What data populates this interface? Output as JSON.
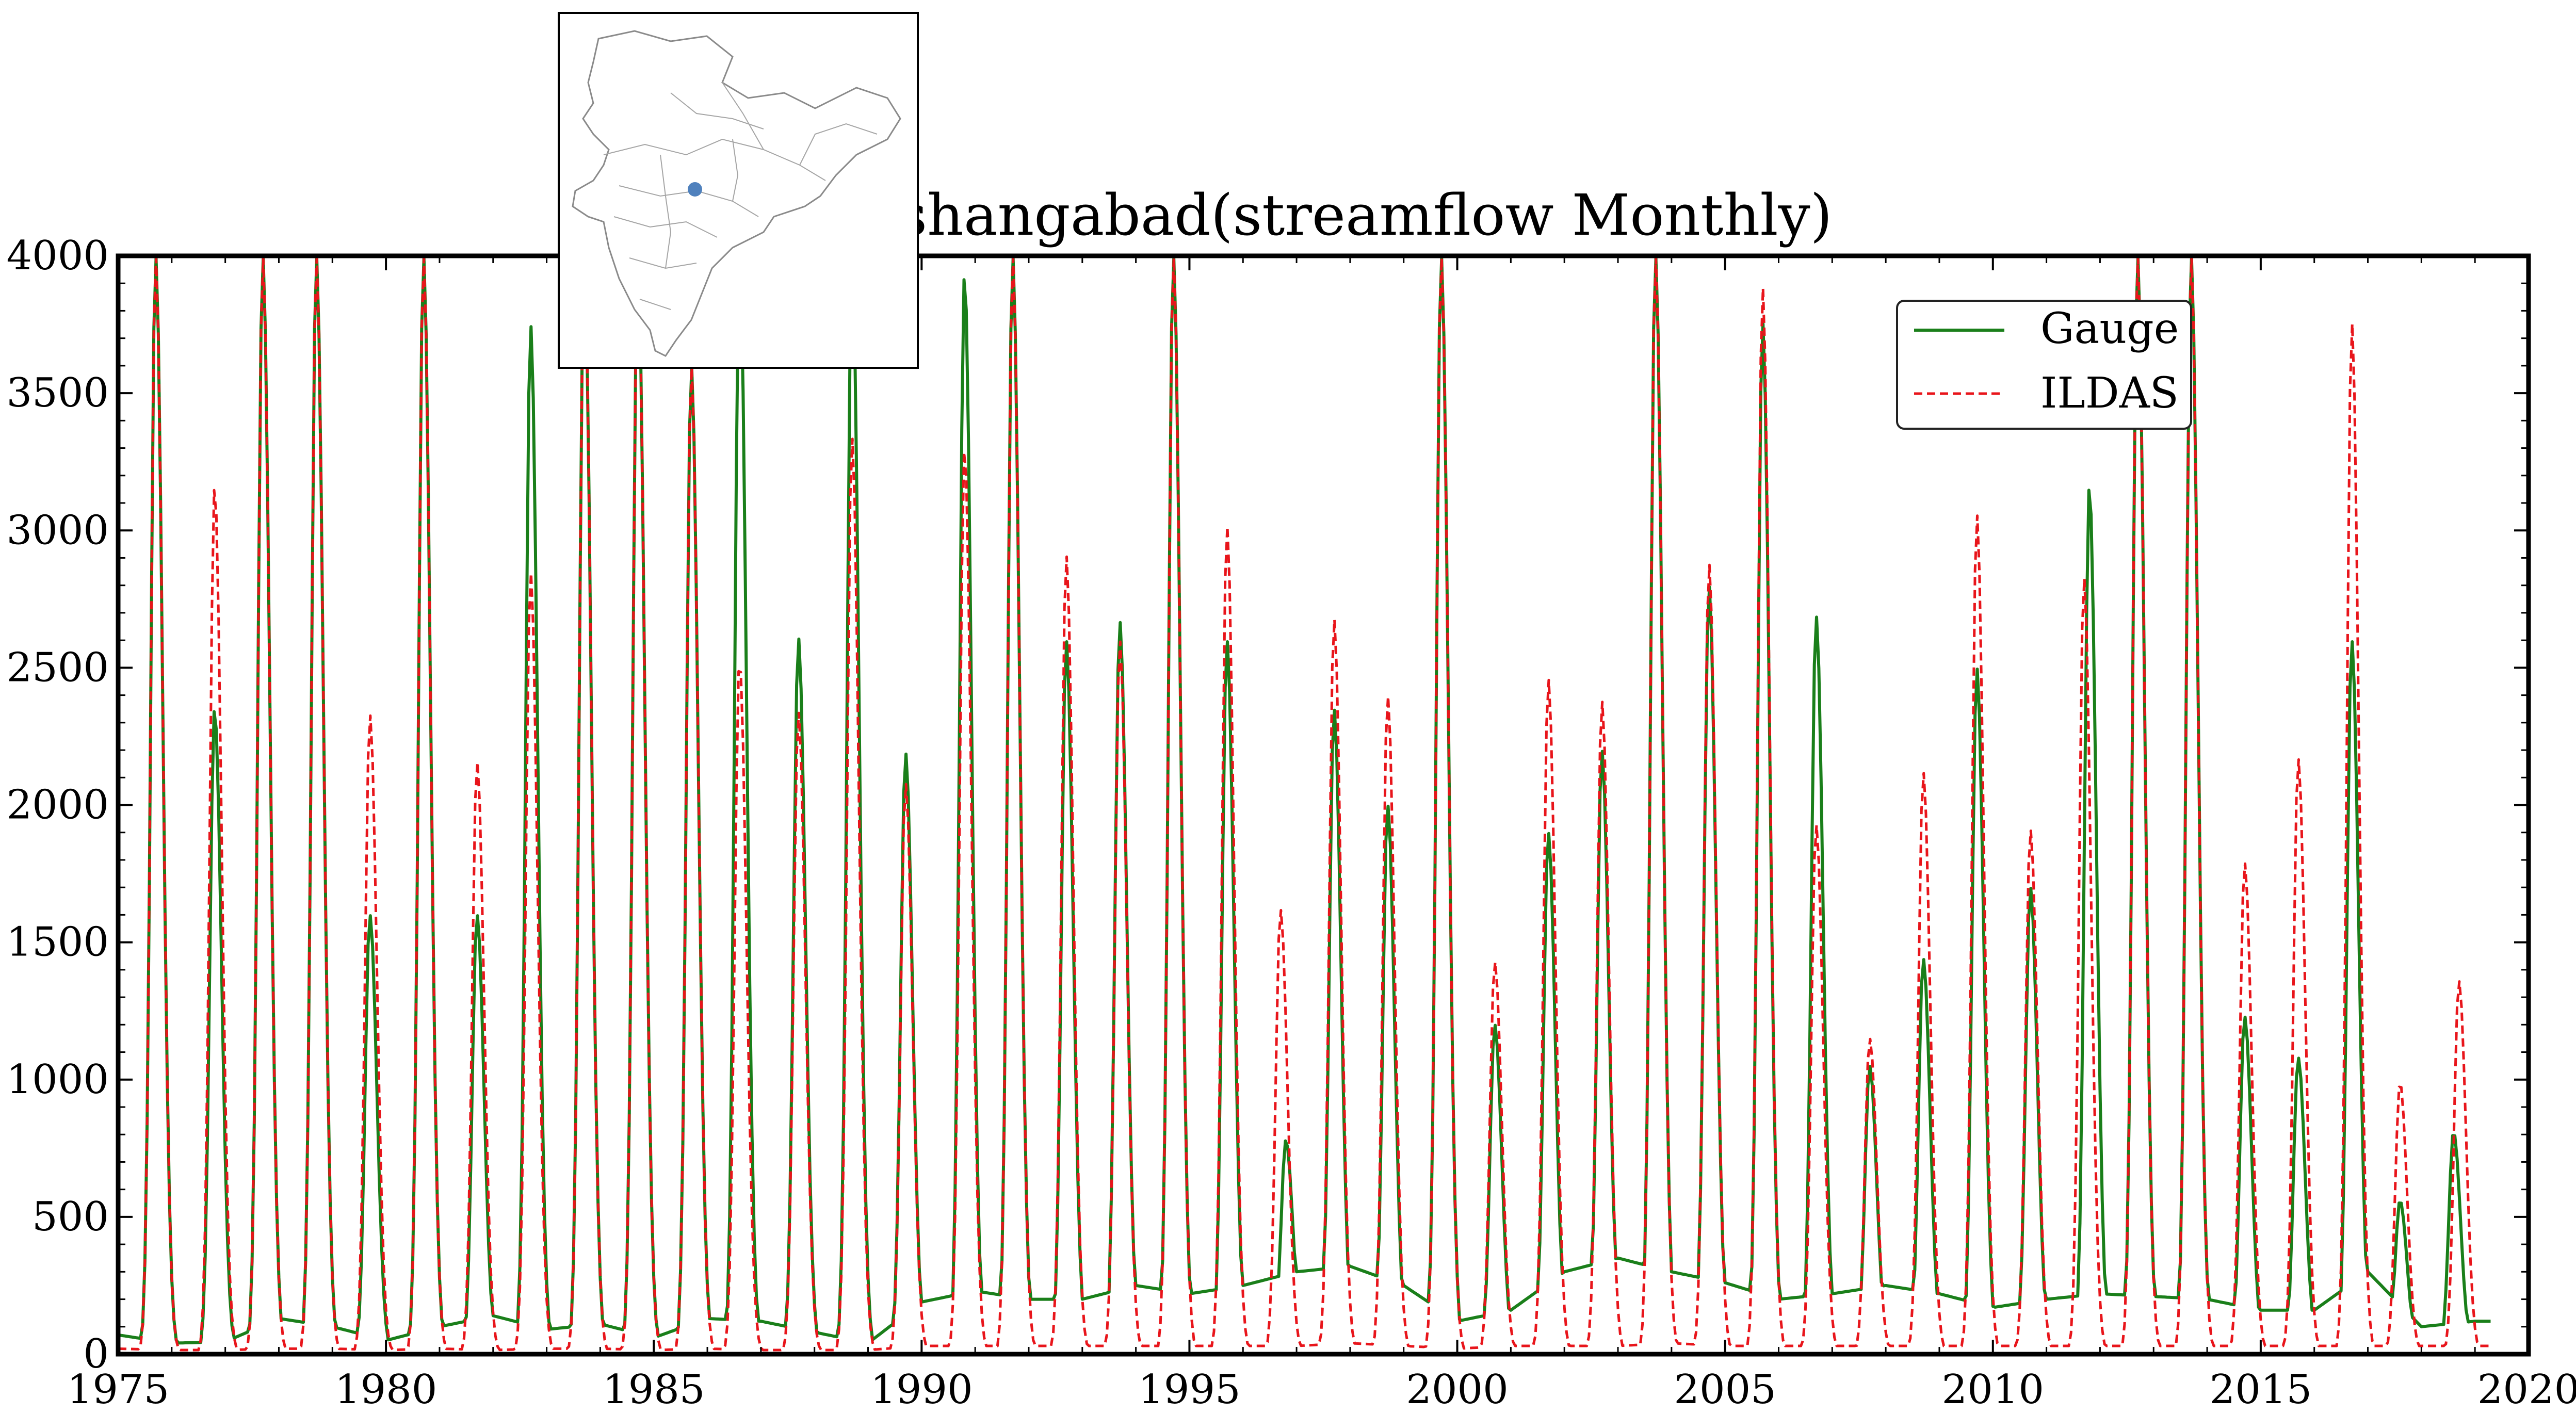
{
  "chart_data": {
    "type": "line",
    "title": "Hoshangabad(streamflow Monthly)",
    "xlim": [
      1975,
      2020
    ],
    "ylim": [
      0,
      4000
    ],
    "x_ticks": [
      "1975",
      "1980",
      "1985",
      "1990",
      "1995",
      "2000",
      "2005",
      "2010",
      "2015",
      "2020"
    ],
    "y_ticks": [
      "0",
      "500",
      "1000",
      "1500",
      "2000",
      "2500",
      "3000",
      "3500",
      "4000"
    ],
    "legend_position": "upper-right",
    "grid": false,
    "inset_map": {
      "marker_label": "",
      "present": true
    },
    "series": [
      {
        "name": "Gauge",
        "color": "#1a7f1a",
        "style": "solid",
        "peaks": [
          [
            1975.7,
            4000
          ],
          [
            1976.8,
            2350
          ],
          [
            1977.7,
            4000
          ],
          [
            1978.7,
            4000
          ],
          [
            1979.7,
            1600
          ],
          [
            1980.7,
            4000
          ],
          [
            1981.7,
            1600
          ],
          [
            1982.7,
            3750
          ],
          [
            1983.7,
            4000
          ],
          [
            1984.7,
            4000
          ],
          [
            1985.7,
            3600
          ],
          [
            1986.6,
            4000
          ],
          [
            1987.7,
            2610
          ],
          [
            1988.7,
            4000
          ],
          [
            1989.7,
            2190
          ],
          [
            1990.8,
            3930
          ],
          [
            1991.7,
            4000
          ],
          [
            1992.7,
            2600
          ],
          [
            1993.7,
            2670
          ],
          [
            1994.7,
            4000
          ],
          [
            1995.7,
            2600
          ],
          [
            1996.8,
            780
          ],
          [
            1997.7,
            2350
          ],
          [
            1998.7,
            2000
          ],
          [
            1999.7,
            4000
          ],
          [
            2000.7,
            1200
          ],
          [
            2001.7,
            1900
          ],
          [
            2002.7,
            2200
          ],
          [
            2003.7,
            4000
          ],
          [
            2004.7,
            2800
          ],
          [
            2005.7,
            3760
          ],
          [
            2006.7,
            2690
          ],
          [
            2007.7,
            1050
          ],
          [
            2008.7,
            1440
          ],
          [
            2009.7,
            2500
          ],
          [
            2010.7,
            1700
          ],
          [
            2011.8,
            3160
          ],
          [
            2012.7,
            4000
          ],
          [
            2013.7,
            4000
          ],
          [
            2014.7,
            1230
          ],
          [
            2015.7,
            1080
          ],
          [
            2016.7,
            2600
          ],
          [
            2017.6,
            560
          ],
          [
            2018.6,
            810
          ]
        ],
        "base": [
          [
            1975,
            70
          ],
          [
            1976,
            40
          ],
          [
            1977,
            45
          ],
          [
            1978,
            130
          ],
          [
            1979,
            100
          ],
          [
            1980,
            50
          ],
          [
            1981,
            100
          ],
          [
            1982,
            140
          ],
          [
            1983,
            90
          ],
          [
            1984,
            110
          ],
          [
            1985,
            60
          ],
          [
            1986,
            130
          ],
          [
            1987,
            120
          ],
          [
            1988,
            80
          ],
          [
            1989,
            40
          ],
          [
            1990,
            190
          ],
          [
            1991,
            230
          ],
          [
            1992,
            200
          ],
          [
            1993,
            200
          ],
          [
            1994,
            250
          ],
          [
            1995,
            220
          ],
          [
            1996,
            250
          ],
          [
            1997,
            300
          ],
          [
            1998,
            320
          ],
          [
            1999,
            250
          ],
          [
            2000,
            120
          ],
          [
            2001,
            160
          ],
          [
            2002,
            300
          ],
          [
            2003,
            350
          ],
          [
            2004,
            300
          ],
          [
            2005,
            260
          ],
          [
            2006,
            200
          ],
          [
            2007,
            220
          ],
          [
            2008,
            250
          ],
          [
            2009,
            220
          ],
          [
            2010,
            170
          ],
          [
            2011,
            200
          ],
          [
            2012,
            220
          ],
          [
            2013,
            210
          ],
          [
            2014,
            200
          ],
          [
            2015,
            160
          ],
          [
            2016,
            160
          ],
          [
            2017,
            300
          ],
          [
            2018,
            100
          ],
          [
            2019,
            120
          ]
        ]
      },
      {
        "name": "ILDAS",
        "color": "#e8151b",
        "style": "dashed",
        "peaks": [
          [
            1975.7,
            4000
          ],
          [
            1976.8,
            3160
          ],
          [
            1977.7,
            4000
          ],
          [
            1978.7,
            4000
          ],
          [
            1979.7,
            2330
          ],
          [
            1980.7,
            4000
          ],
          [
            1981.7,
            2160
          ],
          [
            1982.7,
            2850
          ],
          [
            1983.7,
            4000
          ],
          [
            1984.7,
            4000
          ],
          [
            1985.7,
            3600
          ],
          [
            1986.6,
            2530
          ],
          [
            1987.7,
            2340
          ],
          [
            1988.7,
            3340
          ],
          [
            1989.7,
            2080
          ],
          [
            1990.8,
            3300
          ],
          [
            1991.7,
            4000
          ],
          [
            1992.7,
            2910
          ],
          [
            1993.7,
            2600
          ],
          [
            1994.7,
            4000
          ],
          [
            1995.7,
            3020
          ],
          [
            1996.7,
            1620
          ],
          [
            1997.7,
            2680
          ],
          [
            1998.7,
            2400
          ],
          [
            1999.7,
            4000
          ],
          [
            2000.7,
            1430
          ],
          [
            2001.7,
            2460
          ],
          [
            2002.7,
            2380
          ],
          [
            2003.7,
            4000
          ],
          [
            2004.7,
            2880
          ],
          [
            2005.7,
            3890
          ],
          [
            2006.7,
            1930
          ],
          [
            2007.7,
            1150
          ],
          [
            2008.7,
            2120
          ],
          [
            2009.7,
            3060
          ],
          [
            2010.7,
            1910
          ],
          [
            2011.7,
            2830
          ],
          [
            2012.7,
            4000
          ],
          [
            2013.7,
            4000
          ],
          [
            2014.7,
            1790
          ],
          [
            2015.7,
            2170
          ],
          [
            2016.7,
            3760
          ],
          [
            2017.6,
            990
          ],
          [
            2018.7,
            1360
          ]
        ],
        "base": [
          [
            1975,
            20
          ],
          [
            1976,
            15
          ],
          [
            1977,
            15
          ],
          [
            1978,
            20
          ],
          [
            1979,
            20
          ],
          [
            1980,
            15
          ],
          [
            1981,
            20
          ],
          [
            1982,
            15
          ],
          [
            1983,
            20
          ],
          [
            1984,
            20
          ],
          [
            1985,
            15
          ],
          [
            1986,
            20
          ],
          [
            1987,
            15
          ],
          [
            1988,
            15
          ],
          [
            1989,
            15
          ],
          [
            1990,
            30
          ],
          [
            1991,
            30
          ],
          [
            1992,
            30
          ],
          [
            1993,
            30
          ],
          [
            1994,
            30
          ],
          [
            1995,
            30
          ],
          [
            1996,
            30
          ],
          [
            1997,
            30
          ],
          [
            1998,
            40
          ],
          [
            1999,
            30
          ],
          [
            2000,
            20
          ],
          [
            2001,
            30
          ],
          [
            2002,
            30
          ],
          [
            2003,
            30
          ],
          [
            2004,
            40
          ],
          [
            2005,
            30
          ],
          [
            2006,
            30
          ],
          [
            2007,
            30
          ],
          [
            2008,
            30
          ],
          [
            2009,
            30
          ],
          [
            2010,
            30
          ],
          [
            2011,
            30
          ],
          [
            2012,
            30
          ],
          [
            2013,
            30
          ],
          [
            2014,
            30
          ],
          [
            2015,
            30
          ],
          [
            2016,
            30
          ],
          [
            2017,
            30
          ],
          [
            2018,
            30
          ],
          [
            2019,
            30
          ]
        ]
      }
    ]
  }
}
